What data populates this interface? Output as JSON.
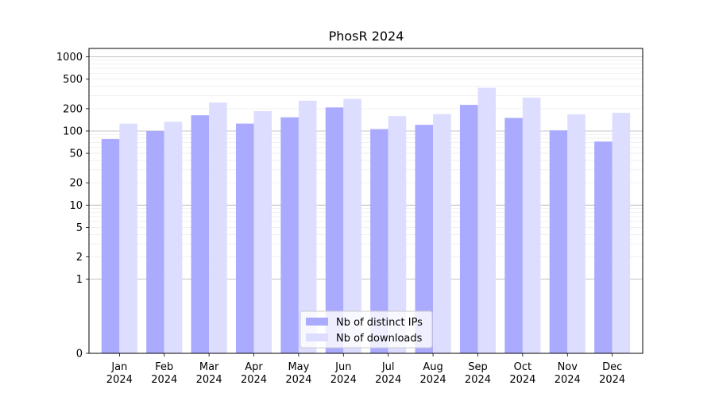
{
  "chart_data": {
    "type": "bar",
    "title": "PhosR 2024",
    "xlabel": "",
    "ylabel": "",
    "yscale": "symlog",
    "ylim": [
      0,
      1300
    ],
    "y_ticks": [
      "0",
      "1",
      "2",
      "5",
      "10",
      "20",
      "50",
      "100",
      "200",
      "500",
      "1000"
    ],
    "categories": [
      [
        "Jan",
        "2024"
      ],
      [
        "Feb",
        "2024"
      ],
      [
        "Mar",
        "2024"
      ],
      [
        "Apr",
        "2024"
      ],
      [
        "May",
        "2024"
      ],
      [
        "Jun",
        "2024"
      ],
      [
        "Jul",
        "2024"
      ],
      [
        "Aug",
        "2024"
      ],
      [
        "Sep",
        "2024"
      ],
      [
        "Oct",
        "2024"
      ],
      [
        "Nov",
        "2024"
      ],
      [
        "Dec",
        "2024"
      ]
    ],
    "series": [
      {
        "name": "Nb of distinct IPs",
        "color": "#aaaaff",
        "values": [
          78,
          100,
          163,
          126,
          153,
          208,
          106,
          121,
          225,
          150,
          102,
          72
        ]
      },
      {
        "name": "Nb of downloads",
        "color": "#ddddff",
        "values": [
          126,
          133,
          242,
          185,
          256,
          271,
          159,
          169,
          383,
          282,
          168,
          176
        ]
      }
    ],
    "grid": true,
    "legend_position": "bottom-center"
  }
}
